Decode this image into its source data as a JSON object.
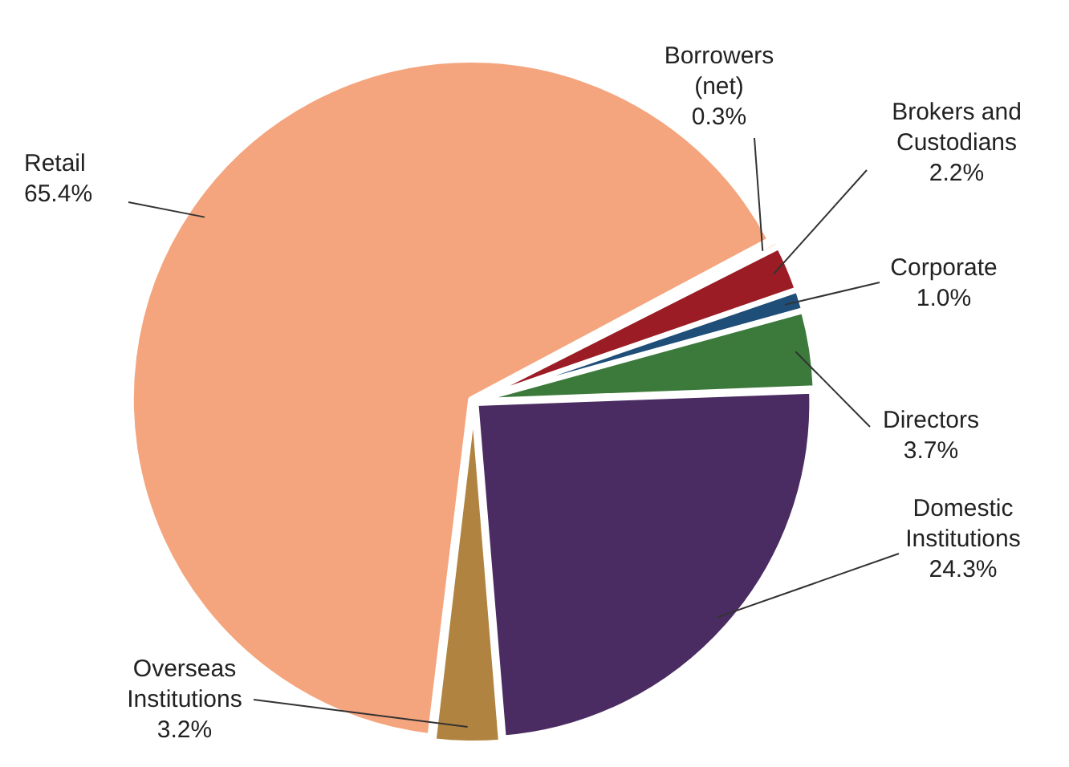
{
  "chart_data": {
    "type": "pie",
    "categories": [
      "Borrowers (net)",
      "Brokers and Custodians",
      "Corporate",
      "Directors",
      "Domestic Institutions",
      "Overseas Institutions",
      "Retail"
    ],
    "values": [
      0.3,
      2.2,
      1.0,
      3.7,
      24.3,
      3.2,
      65.4
    ],
    "value_labels": [
      "0.3%",
      "2.2%",
      "1.0%",
      "3.7%",
      "24.3%",
      "3.2%",
      "65.4%"
    ],
    "colors": [
      "#e8772e",
      "#9b1c24",
      "#1f4e79",
      "#3b7a3b",
      "#4a2c62",
      "#b08440",
      "#f4a57e"
    ],
    "legend": false
  }
}
